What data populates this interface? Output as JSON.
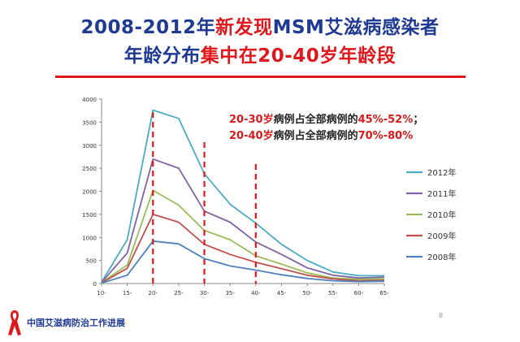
{
  "slide": {
    "title_line1": {
      "part1": "2008-2012年",
      "part2": "新发现",
      "part3": "MSM艾滋病感染者"
    },
    "title_line2": {
      "part1": "年龄分布",
      "part2": "集中在20-40岁年龄段"
    },
    "annotation1": {
      "part1": "20-30岁",
      "part2": "病例占全部病例的",
      "part3": "45%-52%",
      "part4": "；"
    },
    "annotation2": {
      "part1": "20-40岁",
      "part2": "病例占全部病例的",
      "part3": "70%-80%"
    },
    "footer": "中国艾滋病防治工作进展",
    "page_number": "8",
    "ribbon_icon": "red-ribbon-icon",
    "colors": {
      "accent_red": "#e0181d",
      "title_blue": "#1f3a93"
    }
  },
  "chart_data": {
    "type": "line",
    "categories": [
      "10-",
      "15-",
      "20-",
      "25-",
      "30-",
      "35-",
      "40-",
      "45-",
      "50-",
      "55-",
      "60-",
      "65-"
    ],
    "ylim": [
      0,
      4000
    ],
    "yticks": [
      0,
      500,
      1000,
      1500,
      2000,
      2500,
      3000,
      3500,
      4000
    ],
    "grid": false,
    "legend_position": "right",
    "series": [
      {
        "name": "2012年",
        "color": "#4bacc6",
        "values": [
          30,
          950,
          3760,
          3580,
          2380,
          1720,
          1310,
          850,
          500,
          250,
          170,
          170
        ]
      },
      {
        "name": "2011年",
        "color": "#8064a2",
        "values": [
          25,
          660,
          2700,
          2500,
          1570,
          1330,
          900,
          630,
          340,
          180,
          120,
          140
        ]
      },
      {
        "name": "2010年",
        "color": "#9bbb59",
        "values": [
          20,
          400,
          2020,
          1700,
          1150,
          950,
          600,
          420,
          230,
          120,
          90,
          100
        ]
      },
      {
        "name": "2009年",
        "color": "#c0504d",
        "values": [
          15,
          330,
          1500,
          1330,
          850,
          630,
          460,
          320,
          180,
          100,
          60,
          70
        ]
      },
      {
        "name": "2008年",
        "color": "#4f81bd",
        "values": [
          10,
          180,
          920,
          860,
          540,
          380,
          290,
          190,
          110,
          60,
          40,
          50
        ]
      }
    ],
    "reference_lines": [
      "20-",
      "30-",
      "40-"
    ]
  }
}
